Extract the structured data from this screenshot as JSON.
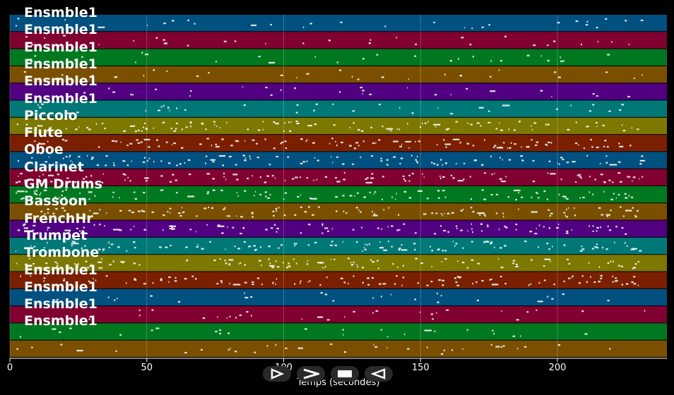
{
  "timeline": {
    "xlabel": "Temps (secondes)",
    "xlim": [
      0,
      240
    ],
    "ticks": [
      0,
      50,
      100,
      150,
      200
    ]
  },
  "tracks": [
    {
      "name": "Ensmble1",
      "color": "#005080"
    },
    {
      "name": "Ensmble1",
      "color": "#800030"
    },
    {
      "name": "Ensmble1",
      "color": "#007820"
    },
    {
      "name": "Ensmble1",
      "color": "#7a5000"
    },
    {
      "name": "Ensmble1",
      "color": "#500080"
    },
    {
      "name": "Ensmble1",
      "color": "#007878"
    },
    {
      "name": "Piccolo",
      "color": "#7c7800"
    },
    {
      "name": "Flute",
      "color": "#7a2000"
    },
    {
      "name": "Oboe",
      "color": "#005080"
    },
    {
      "name": "Clarinet",
      "color": "#800030"
    },
    {
      "name": "GM Drums",
      "color": "#007820"
    },
    {
      "name": "Bassoon",
      "color": "#7a5000"
    },
    {
      "name": "FrenchHr",
      "color": "#500080"
    },
    {
      "name": "Trumpet",
      "color": "#007878"
    },
    {
      "name": "Trombone",
      "color": "#7c7800"
    },
    {
      "name": "Ensmble1",
      "color": "#7a2000"
    },
    {
      "name": "Ensmble1",
      "color": "#005080"
    },
    {
      "name": "Ensmble1",
      "color": "#800030"
    },
    {
      "name": "Ensmble1",
      "color": "#007820"
    },
    {
      "name": "",
      "color": "#7a5000"
    }
  ],
  "controls": [
    {
      "name": "play-button",
      "icon": "play-outline-icon"
    },
    {
      "name": "forward-button",
      "icon": "chevron-right-icon"
    },
    {
      "name": "stop-button",
      "icon": "stop-icon"
    },
    {
      "name": "rewind-button",
      "icon": "rewind-outline-icon"
    }
  ]
}
